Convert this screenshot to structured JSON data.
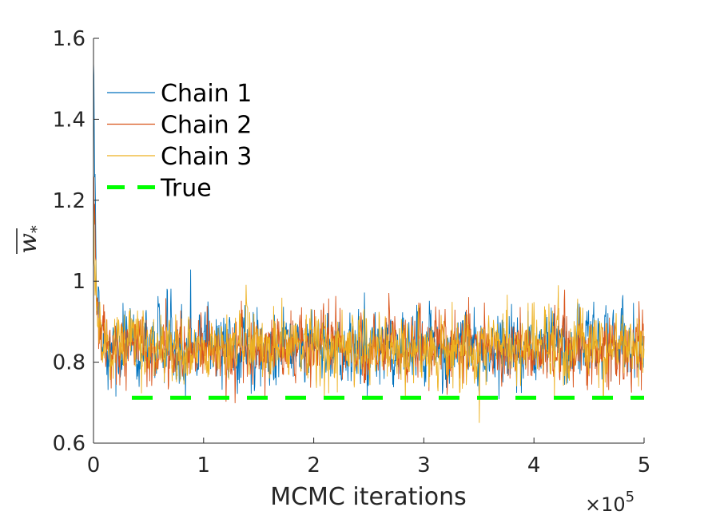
{
  "chart_data": {
    "type": "line",
    "title": "",
    "xlabel": "MCMC iterations",
    "ylabel": "w",
    "ylabel_subscript": "*",
    "x_exponent_prefix": "×10",
    "x_exponent_power": "5",
    "xlim": [
      0,
      5
    ],
    "ylim": [
      0.6,
      1.6
    ],
    "x_ticks": [
      0,
      1,
      2,
      3,
      4,
      5
    ],
    "x_tick_labels": [
      "0",
      "1",
      "2",
      "3",
      "4",
      "5"
    ],
    "y_ticks": [
      0.6,
      0.8,
      1.0,
      1.2,
      1.4,
      1.6
    ],
    "y_tick_labels": [
      "0.6",
      "0.8",
      "1",
      "1.2",
      "1.4",
      "1.6"
    ],
    "grid": false,
    "legend_position": "top-left",
    "series": [
      {
        "name": "Chain 1",
        "color": "#0072BD",
        "start": 1.54,
        "mean": 0.835,
        "sd": 0.045
      },
      {
        "name": "Chain 2",
        "color": "#D95319",
        "start": 1.26,
        "mean": 0.835,
        "sd": 0.042
      },
      {
        "name": "Chain 3",
        "color": "#EDB120",
        "start": 1.18,
        "mean": 0.84,
        "sd": 0.042
      },
      {
        "name": "True",
        "color": "#00FF00",
        "constant": 0.712,
        "dashed": true
      }
    ]
  }
}
